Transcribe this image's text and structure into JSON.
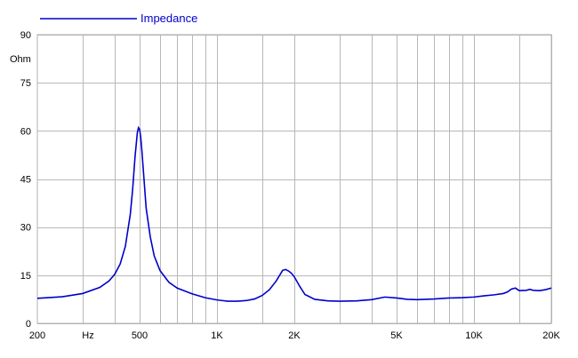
{
  "chart_data": {
    "type": "line",
    "title": "",
    "xlabel": "Hz",
    "ylabel": "Ohm",
    "x_scale": "log",
    "xlim": [
      200,
      20000
    ],
    "ylim": [
      0,
      90
    ],
    "grid": true,
    "legend_position": "top-left",
    "x_ticks": [
      {
        "value": 200,
        "label": "200"
      },
      {
        "value": 500,
        "label": "500"
      },
      {
        "value": 1000,
        "label": "1K"
      },
      {
        "value": 2000,
        "label": "2K"
      },
      {
        "value": 5000,
        "label": "5K"
      },
      {
        "value": 10000,
        "label": "10K"
      },
      {
        "value": 20000,
        "label": "20K"
      }
    ],
    "x_grid_values": [
      300,
      400,
      500,
      600,
      700,
      800,
      900,
      1000,
      1500,
      2000,
      3000,
      4000,
      5000,
      6000,
      7000,
      8000,
      9000,
      10000,
      15000,
      20000
    ],
    "y_ticks": [
      0,
      15,
      30,
      45,
      60,
      75,
      90
    ],
    "series": [
      {
        "name": "Impedance",
        "color": "#0000cc",
        "x": [
          200,
          250,
          300,
          350,
          380,
          400,
          420,
          440,
          460,
          470,
          480,
          490,
          495,
          500,
          505,
          510,
          520,
          530,
          550,
          570,
          600,
          650,
          700,
          800,
          900,
          1000,
          1050,
          1100,
          1200,
          1300,
          1400,
          1500,
          1600,
          1700,
          1800,
          1850,
          1900,
          1950,
          2000,
          2100,
          2200,
          2400,
          2700,
          3000,
          3500,
          4000,
          4500,
          5000,
          5500,
          6000,
          7000,
          8000,
          9000,
          10000,
          11000,
          12000,
          13000,
          13500,
          14000,
          14500,
          15000,
          16000,
          16500,
          17000,
          18000,
          19000,
          20000
        ],
        "y": [
          7.8,
          8.3,
          9.3,
          11.2,
          13.2,
          15.3,
          18.5,
          24,
          34,
          42,
          52,
          59.5,
          61,
          60.5,
          58,
          54,
          45,
          36,
          27,
          21,
          16.5,
          12.8,
          11,
          9.2,
          8,
          7.3,
          7.1,
          6.9,
          6.9,
          7.1,
          7.6,
          8.7,
          10.5,
          13.2,
          16.5,
          16.8,
          16.3,
          15.6,
          14.5,
          11.5,
          9,
          7.5,
          7,
          6.9,
          7,
          7.4,
          8.2,
          7.9,
          7.5,
          7.4,
          7.6,
          7.9,
          8,
          8.2,
          8.6,
          8.9,
          9.3,
          9.8,
          10.7,
          11,
          10.2,
          10.3,
          10.6,
          10.3,
          10.2,
          10.5,
          11
        ]
      }
    ]
  }
}
